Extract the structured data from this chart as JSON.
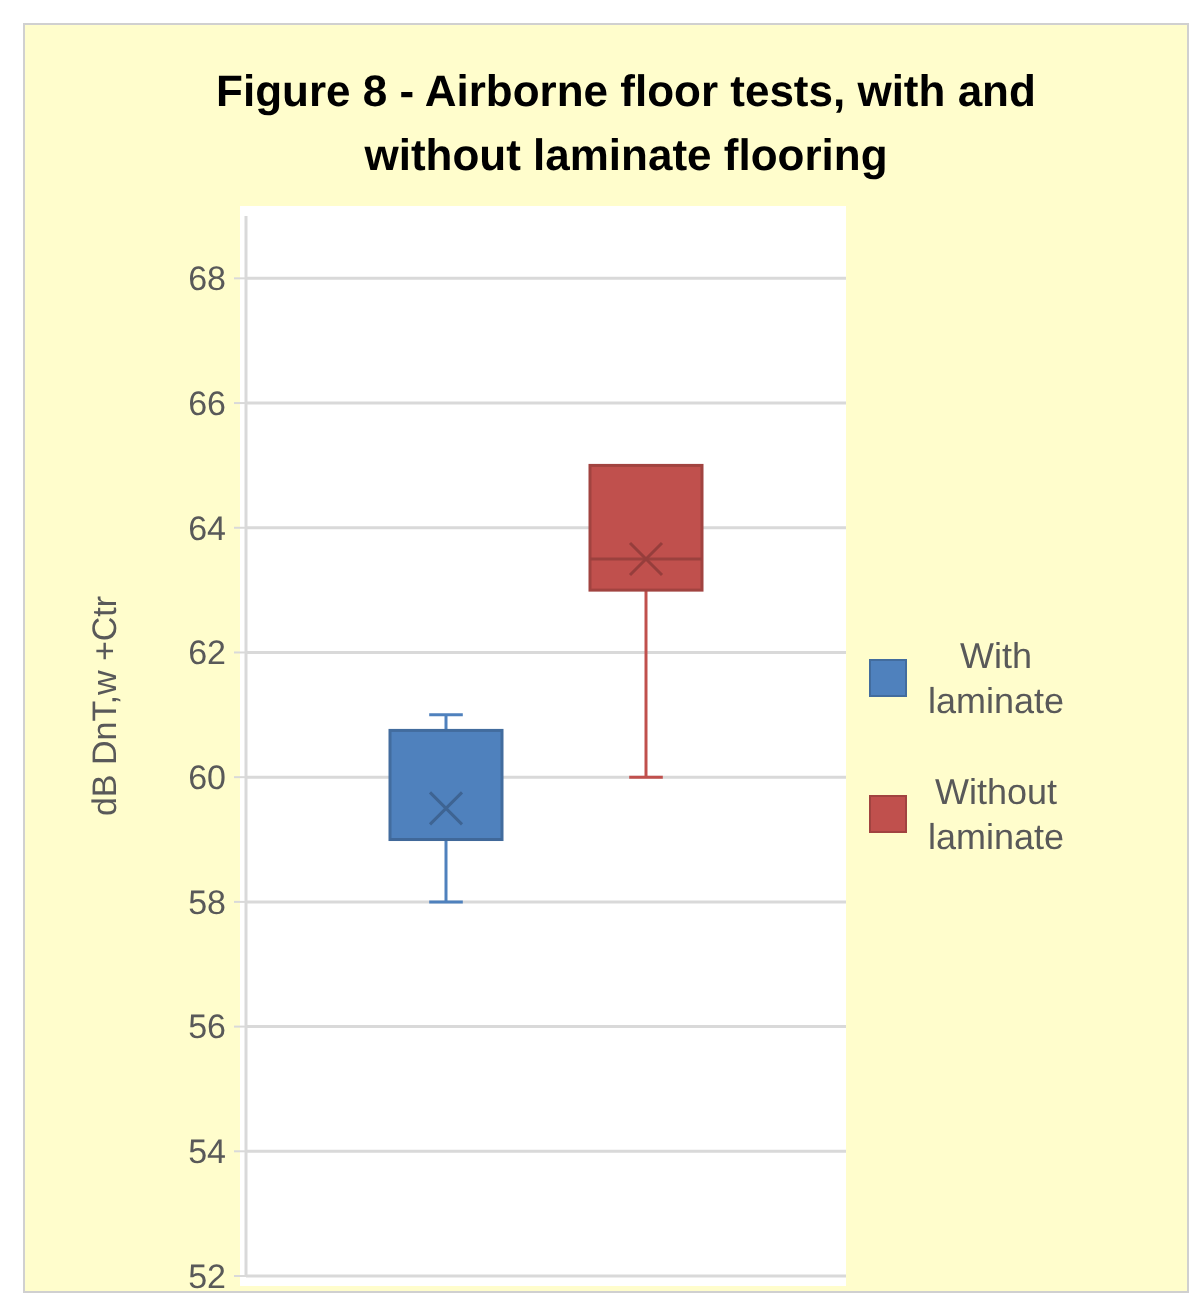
{
  "chart_data": {
    "type": "box",
    "title": "Figure 8 - Airborne floor tests, with and without laminate flooring",
    "ylabel": "dB  DnT,w +Ctr",
    "categories": [
      null
    ],
    "ylim": [
      52,
      69
    ],
    "yticks": [
      52,
      54,
      56,
      58,
      60,
      62,
      64,
      66,
      68
    ],
    "grid": "y",
    "legend": "right",
    "series": [
      {
        "name": "With laminate",
        "color": "#4f81bd",
        "boxes": [
          {
            "low": 58,
            "q1": 59,
            "median": 59,
            "q3": 60.75,
            "high": 61,
            "mean": 59.5
          }
        ]
      },
      {
        "name": "Without laminate",
        "color": "#c0504d",
        "boxes": [
          {
            "low": 60,
            "q1": 63,
            "median": 63.5,
            "q3": 65,
            "high": 65,
            "mean": 63.5
          }
        ]
      }
    ]
  }
}
